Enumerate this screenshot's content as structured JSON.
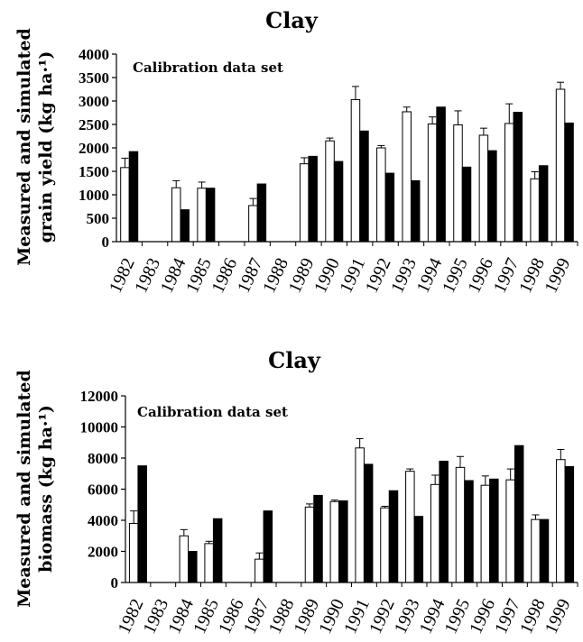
{
  "chart_data": [
    {
      "type": "bar",
      "title": "Clay",
      "annotation": "Calibration data set",
      "ylabel_lines": [
        "Measured and simulated",
        "grain yield  (kg ha·¹)"
      ],
      "xlabel": "",
      "ylim": [
        0,
        4000
      ],
      "yticks": [
        0,
        500,
        1000,
        1500,
        2000,
        2500,
        3000,
        3500,
        4000
      ],
      "categories": [
        "1982",
        "1983",
        "1984",
        "1985",
        "1986",
        "1987",
        "1988",
        "1989",
        "1990",
        "1991",
        "1992",
        "1993",
        "1994",
        "1995",
        "1996",
        "1997",
        "1998",
        "1999"
      ],
      "series": [
        {
          "style": "open",
          "fill": "#ffffff",
          "values": [
            1580,
            null,
            1150,
            1140,
            null,
            770,
            null,
            1660,
            2150,
            3030,
            2000,
            2770,
            2510,
            2490,
            2270,
            2520,
            1340,
            3250
          ],
          "error": [
            200,
            null,
            150,
            130,
            null,
            150,
            null,
            130,
            60,
            280,
            50,
            100,
            150,
            300,
            150,
            420,
            150,
            150
          ]
        },
        {
          "style": "filled",
          "fill": "#000000",
          "values": [
            1920,
            null,
            680,
            1140,
            null,
            1230,
            null,
            1820,
            1710,
            2360,
            1460,
            1300,
            2870,
            1590,
            1940,
            2760,
            1620,
            2530
          ]
        }
      ]
    },
    {
      "type": "bar",
      "title": "Clay",
      "annotation": "Calibration data set",
      "ylabel_lines": [
        "Measured and simulated",
        "biomass  (kg ha·¹)"
      ],
      "xlabel": "",
      "ylim": [
        0,
        12000
      ],
      "yticks": [
        0,
        2000,
        4000,
        6000,
        8000,
        10000,
        12000
      ],
      "categories": [
        "1982",
        "1983",
        "1984",
        "1985",
        "1986",
        "1987",
        "1988",
        "1989",
        "1990",
        "1991",
        "1992",
        "1993",
        "1994",
        "1995",
        "1996",
        "1997",
        "1998",
        "1999"
      ],
      "series": [
        {
          "style": "open",
          "fill": "#ffffff",
          "values": [
            3800,
            null,
            3000,
            2500,
            null,
            1500,
            null,
            4850,
            5200,
            8650,
            4800,
            7150,
            6300,
            7400,
            6250,
            6600,
            4050,
            7900
          ],
          "error": [
            800,
            null,
            400,
            150,
            null,
            400,
            null,
            200,
            100,
            600,
            100,
            150,
            600,
            700,
            600,
            700,
            300,
            650
          ]
        },
        {
          "style": "filled",
          "fill": "#000000",
          "values": [
            7500,
            null,
            2000,
            4100,
            null,
            4600,
            null,
            5600,
            5250,
            7600,
            5900,
            4250,
            7800,
            6550,
            6650,
            8800,
            4050,
            7450
          ]
        }
      ]
    }
  ]
}
